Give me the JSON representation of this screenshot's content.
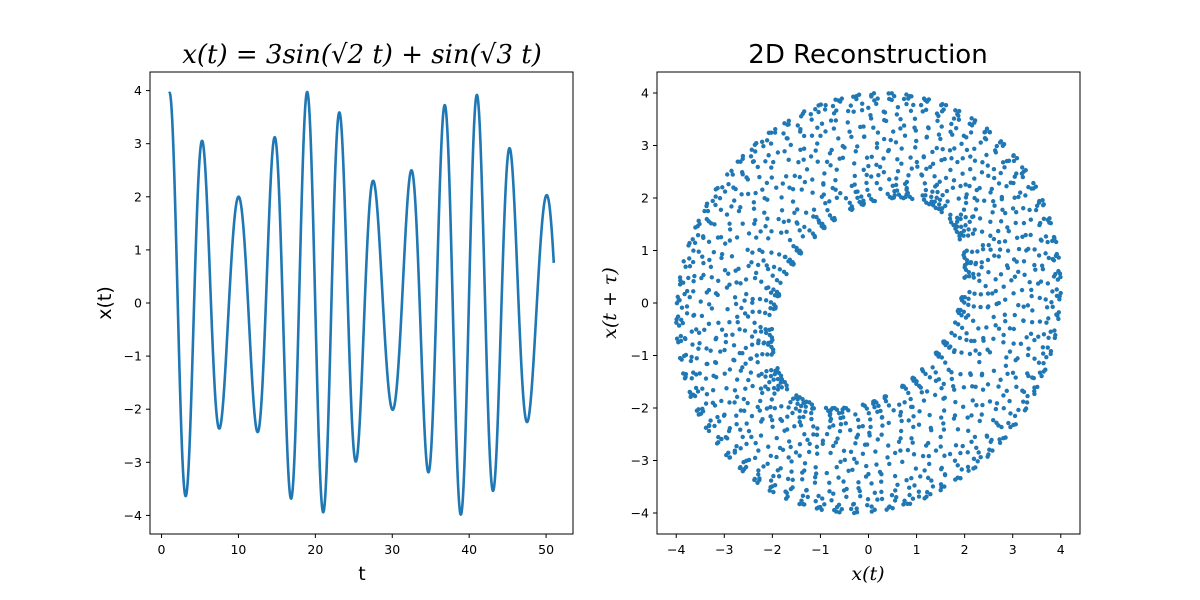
{
  "chart_data": [
    {
      "type": "line",
      "title": "x(t) = 3sin(√2 t) + sin(√3 t)",
      "xlabel": "t",
      "ylabel": "x(t)",
      "xlim": [
        -1.5,
        53.5
      ],
      "ylim": [
        -4.35,
        4.35
      ],
      "xticks": [
        0,
        10,
        20,
        30,
        40,
        50
      ],
      "xtick_labels": [
        "0",
        "10",
        "20",
        "30",
        "40",
        "50"
      ],
      "yticks": [
        -4,
        -3,
        -2,
        -1,
        0,
        1,
        2,
        3,
        4
      ],
      "ytick_labels": [
        "−4",
        "−3",
        "−2",
        "−1",
        "0",
        "1",
        "2",
        "3",
        "4"
      ],
      "series": [
        {
          "function": "3*sin(sqrt(2)*t) + sin(sqrt(3)*t)",
          "t_range": [
            1.0,
            51.0
          ],
          "color": "#1f77b4"
        }
      ],
      "grid": false
    },
    {
      "type": "scatter",
      "title": "2D Reconstruction",
      "xlabel": "x(t)",
      "ylabel": "x(t + τ)",
      "xlim": [
        -4.4,
        4.4
      ],
      "ylim": [
        -4.4,
        4.4
      ],
      "xticks": [
        -4,
        -3,
        -2,
        -1,
        0,
        1,
        2,
        3,
        4
      ],
      "xtick_labels": [
        "−4",
        "−3",
        "−2",
        "−1",
        "0",
        "1",
        "2",
        "3",
        "4"
      ],
      "yticks": [
        -4,
        -3,
        -2,
        -1,
        0,
        1,
        2,
        3,
        4
      ],
      "ytick_labels": [
        "−4",
        "−3",
        "−2",
        "−1",
        "0",
        "1",
        "2",
        "3",
        "4"
      ],
      "series": [
        {
          "x_function": "3*sin(sqrt(2)*t) + sin(sqrt(3)*t)",
          "y_function": "3*sin(sqrt(2)*(t+1)) + sin(sqrt(3)*(t+1))",
          "t_range": [
            1.0,
            501.0
          ],
          "n_points": 1600,
          "color": "#1f77b4"
        }
      ],
      "grid": false
    }
  ]
}
